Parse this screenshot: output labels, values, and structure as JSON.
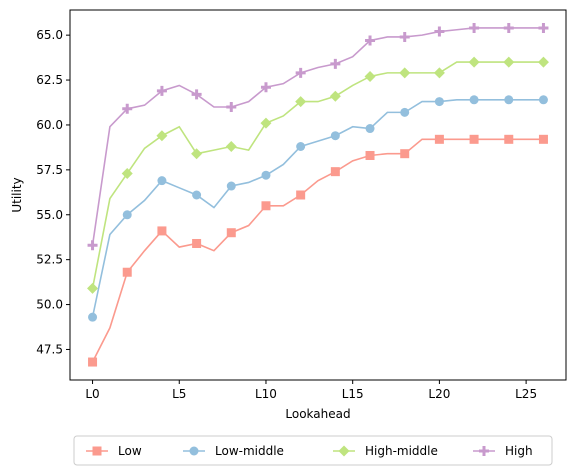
{
  "chart_data": {
    "type": "line",
    "xlabel": "Lookahead",
    "ylabel": "Utility",
    "xlim": [
      -1.3,
      27.3
    ],
    "ylim": [
      45.8,
      66.4
    ],
    "x_ticks": [
      0,
      5,
      10,
      15,
      20,
      25
    ],
    "x_tick_labels": [
      "L0",
      "L5",
      "L10",
      "L15",
      "L20",
      "L25"
    ],
    "y_ticks": [
      47.5,
      50.0,
      52.5,
      55.0,
      57.5,
      60.0,
      62.5,
      65.0
    ],
    "y_tick_labels": [
      "47.5",
      "50.0",
      "52.5",
      "55.0",
      "57.5",
      "60.0",
      "62.5",
      "65.0"
    ],
    "grid": false,
    "legend_position": "bottom-outside",
    "x": [
      0,
      1,
      2,
      3,
      4,
      5,
      6,
      7,
      8,
      9,
      10,
      11,
      12,
      13,
      14,
      15,
      16,
      17,
      18,
      19,
      20,
      21,
      22,
      23,
      24,
      25,
      26
    ],
    "series": [
      {
        "name": "Low",
        "color": "#fb9a8e",
        "marker": "square",
        "values": [
          46.8,
          48.7,
          51.8,
          53.0,
          54.1,
          53.2,
          53.4,
          53.0,
          54.0,
          54.4,
          55.5,
          55.5,
          56.1,
          56.9,
          57.4,
          58.0,
          58.3,
          58.4,
          58.4,
          59.2,
          59.2,
          59.2,
          59.2,
          59.2,
          59.2,
          59.2,
          59.2
        ]
      },
      {
        "name": "Low-middle",
        "color": "#93bfdd",
        "marker": "circle",
        "values": [
          49.3,
          53.9,
          55.0,
          55.8,
          56.9,
          56.5,
          56.1,
          55.4,
          56.6,
          56.8,
          57.2,
          57.8,
          58.8,
          59.1,
          59.4,
          59.9,
          59.8,
          60.7,
          60.7,
          61.3,
          61.3,
          61.4,
          61.4,
          61.4,
          61.4,
          61.4,
          61.4
        ]
      },
      {
        "name": "High-middle",
        "color": "#bfe47f",
        "marker": "diamond",
        "values": [
          50.9,
          55.9,
          57.3,
          58.7,
          59.4,
          59.9,
          58.4,
          58.6,
          58.8,
          58.6,
          60.1,
          60.5,
          61.3,
          61.3,
          61.6,
          62.2,
          62.7,
          62.9,
          62.9,
          62.9,
          62.9,
          63.5,
          63.5,
          63.5,
          63.5,
          63.5,
          63.5
        ]
      },
      {
        "name": "High",
        "color": "#c89acd",
        "marker": "plus",
        "values": [
          53.3,
          59.9,
          60.9,
          61.1,
          61.9,
          62.2,
          61.7,
          61.0,
          61.0,
          61.3,
          62.1,
          62.3,
          62.9,
          63.2,
          63.4,
          63.8,
          64.7,
          64.9,
          64.9,
          65.0,
          65.2,
          65.3,
          65.4,
          65.4,
          65.4,
          65.4,
          65.4
        ]
      }
    ],
    "marker_indices": [
      0,
      2,
      4,
      6,
      8,
      10,
      12,
      14,
      16,
      18,
      20,
      22,
      24,
      26
    ]
  }
}
